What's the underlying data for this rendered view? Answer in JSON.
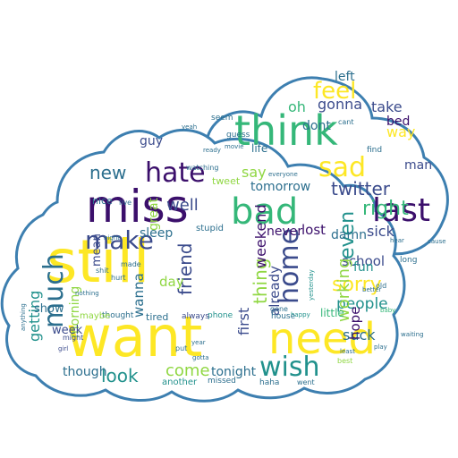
{
  "cloud": {
    "outline_color": "#3d7fb0",
    "fill_color": "#ffffff",
    "shape": "cloud"
  },
  "palette": {
    "purple": "#3b0f6b",
    "indigo": "#3b4b8c",
    "blue": "#2c6f8e",
    "teal": "#21918c",
    "green": "#35b779",
    "lime": "#90d743",
    "yellow": "#fde725"
  },
  "words": [
    {
      "text": "still",
      "color": "yellow"
    },
    {
      "text": "want",
      "color": "yellow"
    },
    {
      "text": "miss",
      "color": "purple"
    },
    {
      "text": "think",
      "color": "green"
    },
    {
      "text": "need",
      "color": "yellow"
    },
    {
      "text": "bad",
      "color": "green"
    },
    {
      "text": "last",
      "color": "purple"
    },
    {
      "text": "hate",
      "color": "purple"
    },
    {
      "text": "make",
      "color": "indigo"
    },
    {
      "text": "wish",
      "color": "teal"
    },
    {
      "text": "sad",
      "color": "yellow"
    },
    {
      "text": "feel",
      "color": "yellow"
    },
    {
      "text": "much",
      "color": "blue"
    },
    {
      "text": "home",
      "color": "indigo"
    },
    {
      "text": "right",
      "color": "green"
    },
    {
      "text": "twitter",
      "color": "indigo"
    },
    {
      "text": "sorry",
      "color": "yellow"
    },
    {
      "text": "new",
      "color": "blue"
    },
    {
      "text": "look",
      "color": "teal"
    },
    {
      "text": "come",
      "color": "lime"
    },
    {
      "text": "friend",
      "color": "indigo"
    },
    {
      "text": "even",
      "color": "teal"
    },
    {
      "text": "thing",
      "color": "lime"
    },
    {
      "text": "tomorrow",
      "color": "blue"
    },
    {
      "text": "well",
      "color": "indigo"
    },
    {
      "text": "sick",
      "color": "indigo"
    },
    {
      "text": "school",
      "color": "indigo"
    },
    {
      "text": "people",
      "color": "teal"
    },
    {
      "text": "working",
      "color": "lime"
    },
    {
      "text": "weekend",
      "color": "purple"
    },
    {
      "text": "already",
      "color": "indigo"
    },
    {
      "text": "damn",
      "color": "blue"
    },
    {
      "text": "getting",
      "color": "teal"
    },
    {
      "text": "morning",
      "color": "lime"
    },
    {
      "text": "suck",
      "color": "blue"
    },
    {
      "text": "fun",
      "color": "teal"
    },
    {
      "text": "hope",
      "color": "purple"
    },
    {
      "text": "day",
      "color": "lime"
    },
    {
      "text": "sleep",
      "color": "blue"
    },
    {
      "text": "lost",
      "color": "purple"
    },
    {
      "text": "never",
      "color": "purple"
    },
    {
      "text": "gonna",
      "color": "indigo"
    },
    {
      "text": "way",
      "color": "yellow"
    },
    {
      "text": "take",
      "color": "indigo"
    },
    {
      "text": "bed",
      "color": "purple"
    },
    {
      "text": "man",
      "color": "indigo"
    },
    {
      "text": "left",
      "color": "blue"
    },
    {
      "text": "oh",
      "color": "green"
    },
    {
      "text": "say",
      "color": "lime"
    },
    {
      "text": "dont",
      "color": "blue"
    },
    {
      "text": "guy",
      "color": "indigo"
    },
    {
      "text": "great",
      "color": "lime"
    },
    {
      "text": "wanna",
      "color": "blue"
    },
    {
      "text": "first",
      "color": "indigo"
    },
    {
      "text": "tonight",
      "color": "blue"
    },
    {
      "text": "though",
      "color": "blue"
    },
    {
      "text": "week",
      "color": "indigo"
    },
    {
      "text": "show",
      "color": "blue"
    },
    {
      "text": "mean",
      "color": "indigo"
    },
    {
      "text": "little",
      "color": "green"
    },
    {
      "text": "life",
      "color": "blue"
    },
    {
      "text": "house",
      "color": "blue"
    },
    {
      "text": "stupid",
      "color": "blue"
    },
    {
      "text": "tired",
      "color": "blue"
    },
    {
      "text": "another",
      "color": "teal"
    },
    {
      "text": "missed",
      "color": "blue"
    },
    {
      "text": "thought",
      "color": "blue"
    },
    {
      "text": "maybe",
      "color": "lime"
    },
    {
      "text": "phone",
      "color": "teal"
    },
    {
      "text": "always",
      "color": "indigo"
    },
    {
      "text": "gone",
      "color": "blue"
    },
    {
      "text": "haha",
      "color": "blue"
    },
    {
      "text": "went",
      "color": "blue"
    },
    {
      "text": "best",
      "color": "lime"
    },
    {
      "text": "happy",
      "color": "teal"
    },
    {
      "text": "yesterday",
      "color": "teal"
    },
    {
      "text": "better",
      "color": "blue"
    },
    {
      "text": "baby",
      "color": "green"
    },
    {
      "text": "long",
      "color": "blue"
    },
    {
      "text": "tweet",
      "color": "lime"
    },
    {
      "text": "seem",
      "color": "blue"
    },
    {
      "text": "guess",
      "color": "blue"
    },
    {
      "text": "nice",
      "color": "blue"
    },
    {
      "text": "year",
      "color": "blue"
    },
    {
      "text": "put",
      "color": "blue"
    },
    {
      "text": "gotta",
      "color": "blue"
    },
    {
      "text": "girl",
      "color": "indigo"
    },
    {
      "text": "might",
      "color": "indigo"
    },
    {
      "text": "nothing",
      "color": "blue"
    },
    {
      "text": "anything",
      "color": "blue"
    },
    {
      "text": "hurt",
      "color": "blue"
    },
    {
      "text": "cant",
      "color": "blue"
    },
    {
      "text": "find",
      "color": "blue"
    },
    {
      "text": "cause",
      "color": "blue"
    },
    {
      "text": "waiting",
      "color": "blue"
    },
    {
      "text": "play",
      "color": "blue"
    },
    {
      "text": "least",
      "color": "blue"
    },
    {
      "text": "old",
      "color": "blue"
    },
    {
      "text": "hear",
      "color": "blue"
    },
    {
      "text": "live",
      "color": "blue"
    },
    {
      "text": "movie",
      "color": "blue"
    },
    {
      "text": "watching",
      "color": "blue"
    },
    {
      "text": "everyone",
      "color": "blue"
    },
    {
      "text": "yeah",
      "color": "blue"
    },
    {
      "text": "ready",
      "color": "blue"
    },
    {
      "text": "made",
      "color": "blue"
    },
    {
      "text": "shit",
      "color": "blue"
    },
    {
      "text": "night",
      "color": "blue"
    }
  ]
}
